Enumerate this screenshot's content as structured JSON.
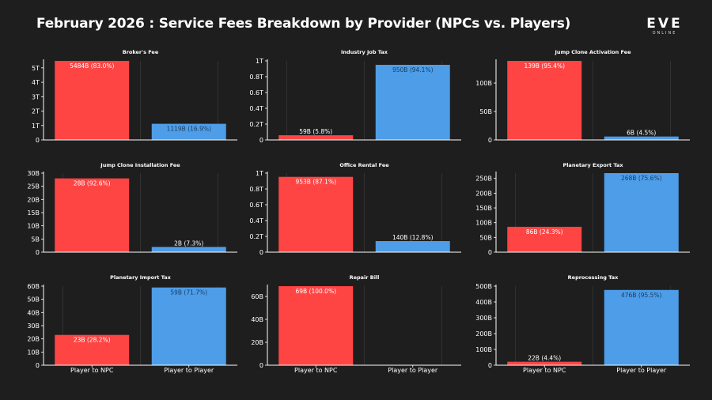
{
  "title": "February 2026 : Service Fees Breakdown by Provider (NPCs vs. Players)",
  "brand": {
    "main": "EVE",
    "sub": "ONLINE"
  },
  "colors": {
    "npc": "#ff4444",
    "player": "#4d9de8",
    "background": "#1e1e1e",
    "axis": "#ffffff",
    "grid": "#3a3a3a"
  },
  "chart_data": [
    {
      "type": "bar",
      "title": "Broker's Fee",
      "categories": [
        "Player to NPC",
        "Player to Player"
      ],
      "values": [
        5484,
        1119
      ],
      "value_unit": "B",
      "labels": [
        "5484B (83.0%)",
        "1119B (16.9%)"
      ],
      "yticks": [
        "0",
        "1T",
        "2T",
        "3T",
        "4T",
        "5T"
      ],
      "ylim": [
        0,
        5484
      ],
      "tick_step": 1000,
      "show_xlabels": false
    },
    {
      "type": "bar",
      "title": "Industry Job Tax",
      "categories": [
        "Player to NPC",
        "Player to Player"
      ],
      "values": [
        59,
        950
      ],
      "value_unit": "B",
      "labels": [
        "59B (5.8%)",
        "950B (94.1%)"
      ],
      "yticks": [
        "0",
        "0.2T",
        "0.4T",
        "0.6T",
        "0.8T",
        "1T"
      ],
      "ylim": [
        0,
        1000
      ],
      "tick_step": 200,
      "show_xlabels": false
    },
    {
      "type": "bar",
      "title": "Jump Clone Activation Fee",
      "categories": [
        "Player to NPC",
        "Player to Player"
      ],
      "values": [
        139,
        6
      ],
      "value_unit": "B",
      "labels": [
        "139B (95.4%)",
        "6B (4.5%)"
      ],
      "yticks": [
        "0",
        "50B",
        "100B"
      ],
      "ylim": [
        0,
        139
      ],
      "tick_step": 50,
      "show_xlabels": false
    },
    {
      "type": "bar",
      "title": "Jump Clone Installation Fee",
      "categories": [
        "Player to NPC",
        "Player to Player"
      ],
      "values": [
        28,
        2
      ],
      "value_unit": "B",
      "labels": [
        "28B (92.6%)",
        "2B (7.3%)"
      ],
      "yticks": [
        "0",
        "5B",
        "10B",
        "15B",
        "20B",
        "25B",
        "30B"
      ],
      "ylim": [
        0,
        30
      ],
      "tick_step": 5,
      "show_xlabels": false
    },
    {
      "type": "bar",
      "title": "Office Rental Fee",
      "categories": [
        "Player to NPC",
        "Player to Player"
      ],
      "values": [
        953,
        140
      ],
      "value_unit": "B",
      "labels": [
        "953B (87.1%)",
        "140B (12.8%)"
      ],
      "yticks": [
        "0",
        "0.2T",
        "0.4T",
        "0.6T",
        "0.8T",
        "1T"
      ],
      "ylim": [
        0,
        1000
      ],
      "tick_step": 200,
      "show_xlabels": false
    },
    {
      "type": "bar",
      "title": "Planetary Export Tax",
      "categories": [
        "Player to NPC",
        "Player to Player"
      ],
      "values": [
        86,
        268
      ],
      "value_unit": "B",
      "labels": [
        "86B (24.3%)",
        "268B (75.6%)"
      ],
      "yticks": [
        "0",
        "50B",
        "100B",
        "150B",
        "200B",
        "250B"
      ],
      "ylim": [
        0,
        268
      ],
      "tick_step": 50,
      "show_xlabels": false
    },
    {
      "type": "bar",
      "title": "Planetary Import Tax",
      "categories": [
        "Player to NPC",
        "Player to Player"
      ],
      "values": [
        23,
        59
      ],
      "value_unit": "B",
      "labels": [
        "23B (28.2%)",
        "59B (71.7%)"
      ],
      "yticks": [
        "0",
        "10B",
        "20B",
        "30B",
        "40B",
        "50B",
        "60B"
      ],
      "ylim": [
        0,
        60
      ],
      "tick_step": 10,
      "show_xlabels": true
    },
    {
      "type": "bar",
      "title": "Repair Bill",
      "categories": [
        "Player to NPC",
        "Player to Player"
      ],
      "values": [
        69,
        0
      ],
      "value_unit": "B",
      "labels": [
        "69B (100.0%)",
        ""
      ],
      "yticks": [
        "0",
        "20B",
        "40B",
        "60B"
      ],
      "ylim": [
        0,
        69
      ],
      "tick_step": 20,
      "show_xlabels": true
    },
    {
      "type": "bar",
      "title": "Reprocessing Tax",
      "categories": [
        "Player to NPC",
        "Player to Player"
      ],
      "values": [
        22,
        476
      ],
      "value_unit": "B",
      "labels": [
        "22B (4.4%)",
        "476B (95.5%)"
      ],
      "yticks": [
        "0",
        "100B",
        "200B",
        "300B",
        "400B",
        "500B"
      ],
      "ylim": [
        0,
        500
      ],
      "tick_step": 100,
      "show_xlabels": true
    }
  ]
}
